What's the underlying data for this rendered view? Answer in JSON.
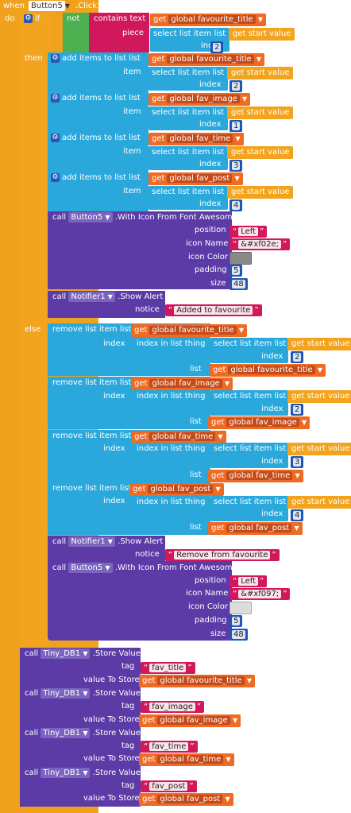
{
  "event": {
    "when": "when",
    "component": "Button5",
    "event": ".Click",
    "do": "do"
  },
  "if_block": {
    "if_label": "if",
    "not_label": "not",
    "contains_label": "contains text",
    "piece_label": "piece",
    "then_label": "then",
    "else_label": "else"
  },
  "get_label": "get",
  "gsv_label": "get start value",
  "sel_label": "select list item  list",
  "index_label": "index",
  "item_label": "item",
  "list_label": "list",
  "add_label": "add items to list  list",
  "remove_label": "remove list item  list",
  "index_in_list_label": "index in list  thing",
  "vars": {
    "fav_title": "global favourite_title",
    "fav_image": "global fav_image",
    "fav_time": "global fav_time",
    "fav_post": "global fav_post"
  },
  "nums": {
    "n1": "1",
    "n2": "2",
    "n3": "3",
    "n4": "4",
    "n5": "5",
    "n48": "48"
  },
  "call_label": "call",
  "icon_method": ".With Icon From Font Awesome",
  "button5": "Button5",
  "notifier": "Notifier1",
  "show_alert": ".Show Alert",
  "notice_label": "notice",
  "position_label": "position",
  "icon_name_label": "icon Name",
  "icon_color_label": "icon Color",
  "padding_label": "padding",
  "size_label": "size",
  "then_icon": {
    "position": "Left",
    "icon_name": "&#xf02e;",
    "icon_color": "#8a8a8a"
  },
  "then_notice": "Added to favourite",
  "else_icon": {
    "position": "Left",
    "icon_name": "&#xf097;",
    "icon_color": "#dcdcdc"
  },
  "else_notice": "Remove from favourite",
  "tinydb": "Tiny_DB1",
  "store_value": ".Store Value",
  "tag_label": "tag",
  "value_to_store_label": "value To Store",
  "tags": {
    "t1": "fav_title",
    "t2": "fav_image",
    "t3": "fav_time",
    "t4": "fav_post"
  }
}
